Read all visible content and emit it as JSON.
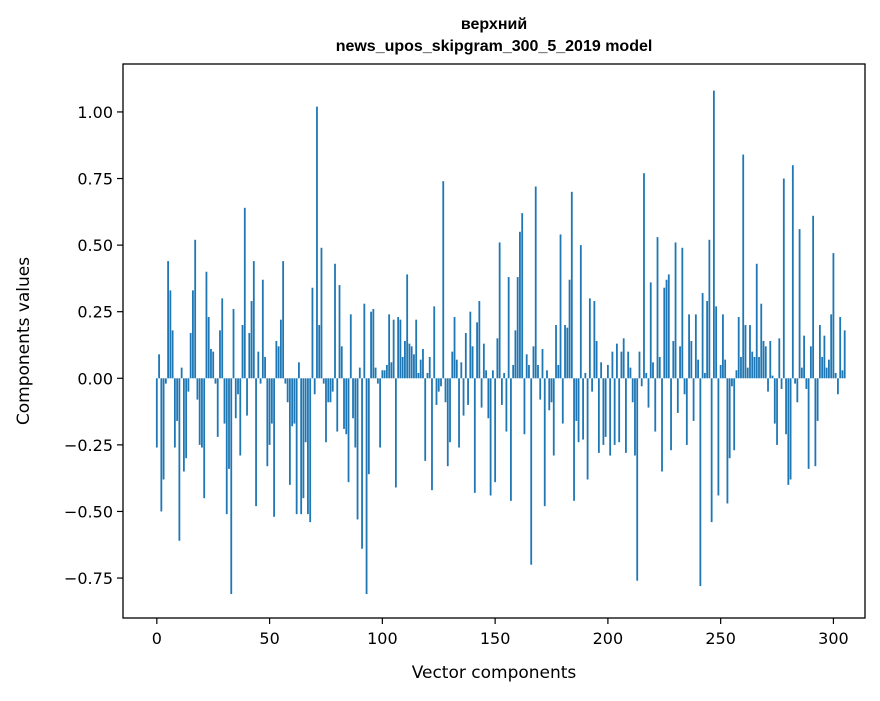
{
  "colors": {
    "bar": "#1f77b4",
    "axis": "#000000",
    "background": "#ffffff"
  },
  "chart_data": {
    "type": "bar",
    "title_line1": "верхний",
    "title_line2": "news_upos_skipgram_300_5_2019 model",
    "xlabel": "Vector components",
    "ylabel": "Components values",
    "xlim": [
      -15,
      314
    ],
    "ylim": [
      -0.9,
      1.18
    ],
    "xticks": [
      0,
      50,
      100,
      150,
      200,
      250,
      300
    ],
    "yticks": [
      -0.75,
      -0.5,
      -0.25,
      0.0,
      0.25,
      0.5,
      0.75,
      1.0
    ],
    "grid": false,
    "values": [
      -0.26,
      0.09,
      -0.5,
      -0.38,
      -0.02,
      0.44,
      0.33,
      0.18,
      -0.26,
      -0.16,
      -0.61,
      0.04,
      -0.35,
      -0.3,
      -0.05,
      0.17,
      0.33,
      0.52,
      -0.08,
      -0.25,
      -0.26,
      -0.45,
      0.4,
      0.23,
      0.11,
      0.1,
      -0.02,
      -0.22,
      0.18,
      0.3,
      -0.17,
      -0.51,
      -0.34,
      -0.81,
      0.26,
      -0.15,
      -0.06,
      -0.29,
      0.2,
      0.64,
      -0.14,
      0.17,
      0.29,
      0.44,
      -0.48,
      0.1,
      -0.02,
      0.37,
      0.08,
      -0.33,
      -0.25,
      -0.17,
      -0.52,
      0.14,
      0.12,
      0.22,
      0.44,
      -0.02,
      -0.09,
      -0.4,
      -0.18,
      -0.17,
      -0.51,
      0.06,
      -0.51,
      -0.45,
      -0.24,
      -0.51,
      -0.54,
      0.34,
      -0.06,
      1.02,
      0.2,
      0.49,
      -0.02,
      -0.24,
      -0.09,
      -0.09,
      -0.05,
      0.43,
      -0.2,
      0.35,
      0.12,
      -0.19,
      -0.21,
      -0.39,
      0.24,
      -0.15,
      -0.26,
      -0.53,
      0.04,
      -0.64,
      0.28,
      -0.81,
      -0.36,
      0.25,
      0.26,
      0.04,
      -0.02,
      -0.26,
      0.03,
      0.03,
      0.05,
      0.24,
      0.06,
      0.22,
      -0.41,
      0.23,
      0.22,
      0.08,
      0.14,
      0.39,
      0.13,
      0.12,
      0.09,
      0.22,
      0.02,
      0.07,
      0.11,
      -0.31,
      0.02,
      0.08,
      -0.42,
      0.27,
      -0.1,
      -0.05,
      -0.03,
      0.74,
      -0.09,
      -0.33,
      -0.24,
      0.1,
      0.23,
      0.07,
      -0.26,
      0.06,
      -0.14,
      0.17,
      -0.1,
      0.25,
      0.12,
      -0.43,
      0.21,
      0.29,
      -0.11,
      0.13,
      0.03,
      -0.15,
      -0.44,
      0.03,
      -0.39,
      0.15,
      0.51,
      -0.1,
      0.02,
      -0.2,
      0.38,
      -0.46,
      0.05,
      0.18,
      0.38,
      0.55,
      0.62,
      -0.21,
      0.09,
      0.05,
      -0.7,
      0.12,
      0.72,
      0.05,
      -0.08,
      0.11,
      -0.48,
      0.03,
      -0.12,
      -0.09,
      -0.29,
      0.2,
      0.05,
      0.54,
      -0.17,
      0.2,
      0.19,
      0.37,
      0.7,
      -0.46,
      -0.16,
      -0.24,
      0.5,
      -0.23,
      0.02,
      -0.38,
      0.3,
      -0.05,
      0.29,
      0.14,
      -0.28,
      0.06,
      -0.25,
      -0.22,
      0.05,
      -0.29,
      0.1,
      -0.25,
      0.13,
      -0.24,
      0.1,
      0.15,
      -0.28,
      0.1,
      0.04,
      -0.09,
      -0.29,
      -0.76,
      0.1,
      -0.03,
      0.77,
      0.02,
      -0.11,
      0.36,
      0.06,
      -0.2,
      0.53,
      0.08,
      -0.35,
      0.34,
      0.37,
      0.39,
      -0.27,
      0.14,
      0.51,
      -0.13,
      0.12,
      0.49,
      -0.06,
      -0.25,
      0.24,
      0.14,
      -0.16,
      0.24,
      0.07,
      -0.78,
      0.32,
      0.02,
      0.29,
      0.52,
      -0.54,
      1.08,
      0.27,
      -0.44,
      0.05,
      0.24,
      0.07,
      -0.47,
      -0.3,
      -0.03,
      -0.27,
      0.03,
      0.23,
      0.08,
      0.84,
      0.2,
      0.04,
      0.2,
      0.1,
      0.08,
      0.43,
      0.08,
      0.28,
      0.14,
      0.12,
      -0.05,
      0.14,
      0.01,
      -0.17,
      -0.25,
      0.15,
      -0.04,
      0.75,
      -0.21,
      -0.4,
      -0.38,
      0.8,
      -0.02,
      -0.09,
      0.56,
      0.04,
      0.16,
      -0.04,
      -0.34,
      0.12,
      0.61,
      -0.33,
      -0.16,
      0.2,
      0.08,
      0.16,
      0.04,
      0.07,
      0.24,
      0.47,
      0.02,
      -0.06,
      0.23,
      0.03,
      0.18
    ]
  }
}
